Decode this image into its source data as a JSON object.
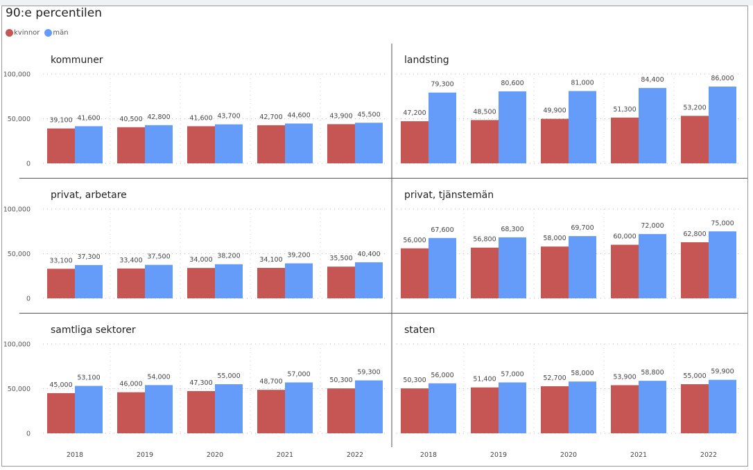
{
  "title": "90:e percentilen",
  "legend": [
    {
      "label": "kvinnor",
      "color": "#c55654"
    },
    {
      "label": "män",
      "color": "#659cf9"
    }
  ],
  "chart_data": [
    {
      "type": "bar",
      "title": "kommuner",
      "categories": [
        "2018",
        "2019",
        "2020",
        "2021",
        "2022"
      ],
      "yticks": [
        "0",
        "50,000",
        "100,000"
      ],
      "ylim": [
        0,
        100000
      ],
      "series": [
        {
          "name": "kvinnor",
          "values": [
            39100,
            40500,
            41600,
            42700,
            43900
          ],
          "labels": [
            "39,100",
            "40,500",
            "41,600",
            "42,700",
            "43,900"
          ]
        },
        {
          "name": "män",
          "values": [
            41600,
            42800,
            43700,
            44600,
            45500
          ],
          "labels": [
            "41,600",
            "42,800",
            "43,700",
            "44,600",
            "45,500"
          ]
        }
      ]
    },
    {
      "type": "bar",
      "title": "landsting",
      "categories": [
        "2018",
        "2019",
        "2020",
        "2021",
        "2022"
      ],
      "yticks": [],
      "ylim": [
        0,
        100000
      ],
      "series": [
        {
          "name": "kvinnor",
          "values": [
            47200,
            48500,
            49900,
            51300,
            53200
          ],
          "labels": [
            "47,200",
            "48,500",
            "49,900",
            "51,300",
            "53,200"
          ]
        },
        {
          "name": "män",
          "values": [
            79300,
            80600,
            81000,
            84400,
            86000
          ],
          "labels": [
            "79,300",
            "80,600",
            "81,000",
            "84,400",
            "86,000"
          ]
        }
      ]
    },
    {
      "type": "bar",
      "title": "privat, arbetare",
      "categories": [
        "2018",
        "2019",
        "2020",
        "2021",
        "2022"
      ],
      "yticks": [
        "0",
        "50,000",
        "100,000"
      ],
      "ylim": [
        0,
        100000
      ],
      "series": [
        {
          "name": "kvinnor",
          "values": [
            33100,
            33400,
            34000,
            34100,
            35500
          ],
          "labels": [
            "33,100",
            "33,400",
            "34,000",
            "34,100",
            "35,500"
          ]
        },
        {
          "name": "män",
          "values": [
            37300,
            37500,
            38200,
            39200,
            40400
          ],
          "labels": [
            "37,300",
            "37,500",
            "38,200",
            "39,200",
            "40,400"
          ]
        }
      ]
    },
    {
      "type": "bar",
      "title": "privat, tjänstemän",
      "categories": [
        "2018",
        "2019",
        "2020",
        "2021",
        "2022"
      ],
      "yticks": [],
      "ylim": [
        0,
        100000
      ],
      "series": [
        {
          "name": "kvinnor",
          "values": [
            56000,
            56800,
            58000,
            60000,
            62800
          ],
          "labels": [
            "56,000",
            "56,800",
            "58,000",
            "60,000",
            "62,800"
          ]
        },
        {
          "name": "män",
          "values": [
            67600,
            68300,
            69700,
            72000,
            75000
          ],
          "labels": [
            "67,600",
            "68,300",
            "69,700",
            "72,000",
            "75,000"
          ]
        }
      ]
    },
    {
      "type": "bar",
      "title": "samtliga sektorer",
      "categories": [
        "2018",
        "2019",
        "2020",
        "2021",
        "2022"
      ],
      "yticks": [
        "0",
        "50,000",
        "100,000"
      ],
      "ylim": [
        0,
        100000
      ],
      "show_x": true,
      "series": [
        {
          "name": "kvinnor",
          "values": [
            45000,
            46000,
            47300,
            48700,
            50300
          ],
          "labels": [
            "45,000",
            "46,000",
            "47,300",
            "48,700",
            "50,300"
          ]
        },
        {
          "name": "män",
          "values": [
            53100,
            54000,
            55000,
            57000,
            59300
          ],
          "labels": [
            "53,100",
            "54,000",
            "55,000",
            "57,000",
            "59,300"
          ]
        }
      ]
    },
    {
      "type": "bar",
      "title": "staten",
      "categories": [
        "2018",
        "2019",
        "2020",
        "2021",
        "2022"
      ],
      "yticks": [],
      "ylim": [
        0,
        100000
      ],
      "show_x": true,
      "series": [
        {
          "name": "kvinnor",
          "values": [
            50300,
            51400,
            52700,
            53900,
            55000
          ],
          "labels": [
            "50,300",
            "51,400",
            "52,700",
            "53,900",
            "55,000"
          ]
        },
        {
          "name": "män",
          "values": [
            56000,
            57000,
            58000,
            58800,
            59900
          ],
          "labels": [
            "56,000",
            "57,000",
            "58,000",
            "58,800",
            "59,900"
          ]
        }
      ]
    }
  ]
}
